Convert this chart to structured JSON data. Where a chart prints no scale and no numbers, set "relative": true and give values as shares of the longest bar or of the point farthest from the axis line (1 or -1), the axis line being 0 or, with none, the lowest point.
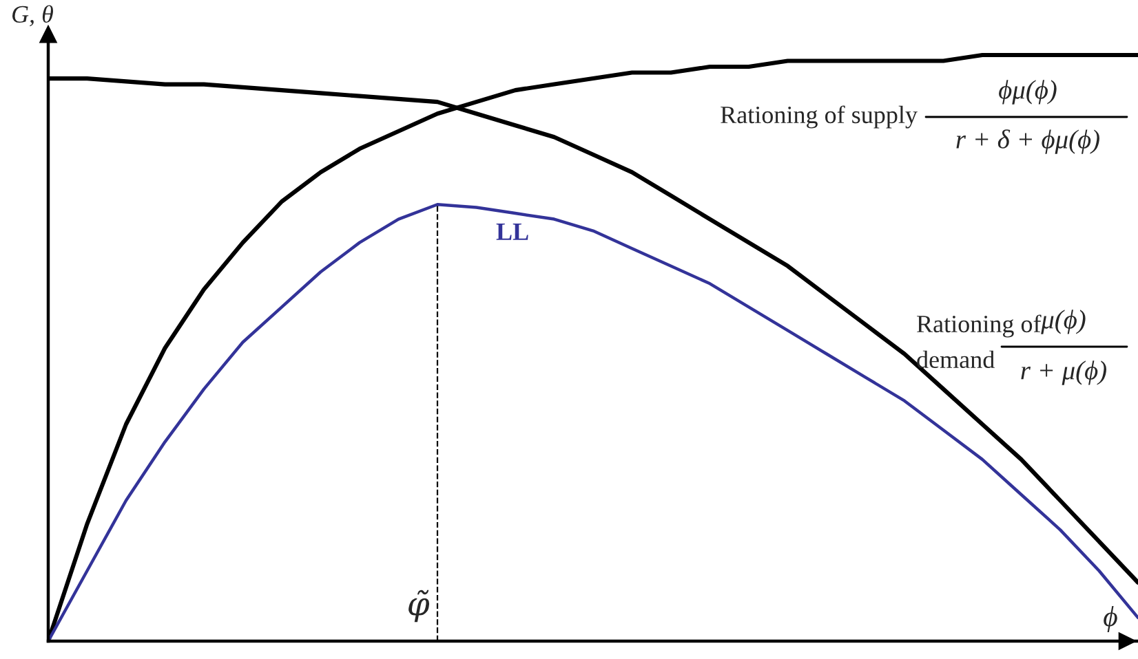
{
  "chart_data": {
    "type": "line",
    "relative": true,
    "xlabel": "ϕ",
    "ylabel": "G, θ",
    "categories": [
      null,
      null,
      null,
      null,
      null,
      null,
      null,
      null,
      null,
      null,
      null,
      null,
      null,
      null,
      null,
      null,
      null,
      null,
      null,
      null,
      null,
      null,
      null,
      null,
      null,
      null,
      null,
      null,
      null
    ],
    "series": [
      {
        "name": "Rationing of supply",
        "color": "#000000",
        "values": [
          0,
          0.2,
          0.37,
          0.5,
          0.6,
          0.68,
          0.75,
          0.8,
          0.84,
          0.87,
          0.9,
          0.92,
          0.94,
          0.95,
          0.96,
          0.97,
          0.97,
          0.98,
          0.98,
          0.99,
          0.99,
          0.99,
          0.99,
          0.99,
          1,
          1,
          1,
          1,
          1
        ]
      },
      {
        "name": "Rationing of demand",
        "color": "#000000",
        "values": [
          0.96,
          0.96,
          0.955,
          0.95,
          0.95,
          0.945,
          0.94,
          0.935,
          0.93,
          0.925,
          0.92,
          0.9,
          0.88,
          0.86,
          0.83,
          0.8,
          0.76,
          0.72,
          0.68,
          0.64,
          0.59,
          0.54,
          0.49,
          0.43,
          0.37,
          0.31,
          0.24,
          0.17,
          0.1
        ]
      },
      {
        "name": "LL",
        "color": "#333399",
        "values": [
          0,
          0.12,
          0.24,
          0.34,
          0.43,
          0.51,
          0.57,
          0.63,
          0.68,
          0.72,
          0.745,
          0.74,
          0.73,
          0.72,
          0.7,
          0.67,
          0.64,
          0.61,
          0.57,
          0.53,
          0.49,
          0.45,
          0.41,
          0.36,
          0.31,
          0.25,
          0.19,
          0.12,
          0.04
        ]
      }
    ],
    "annotations": [
      "ϕμ(ϕ)",
      "r + δ + ϕμ(ϕ)",
      "μ(ϕ)",
      "r + μ(ϕ)",
      "φ̃"
    ]
  }
}
